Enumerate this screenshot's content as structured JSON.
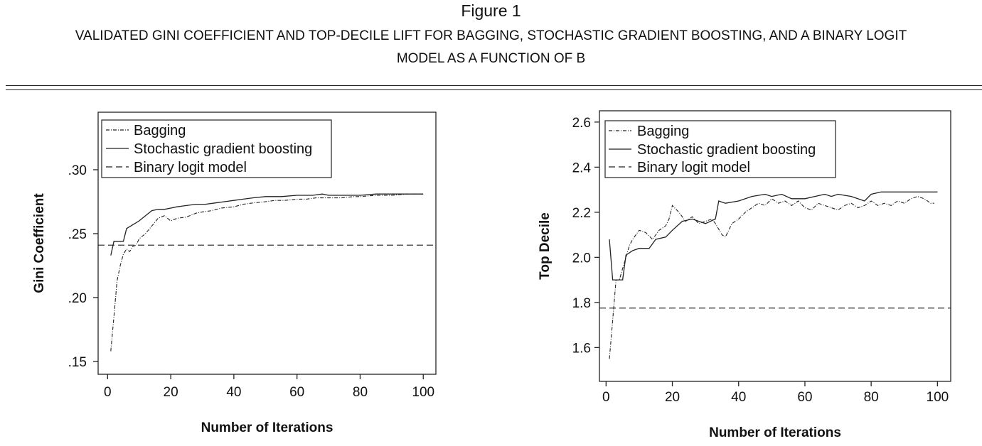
{
  "figure": {
    "title": "Figure 1",
    "caption_line1": "VALIDATED GINI COEFFICIENT AND TOP-DECILE LIFT FOR BAGGING, STOCHASTIC GRADIENT BOOSTING, AND A BINARY LOGIT",
    "caption_line2": "MODEL AS A FUNCTION OF B"
  },
  "chart_data": [
    {
      "type": "line",
      "xlabel": "Number of Iterations",
      "ylabel": "Gini Coefficient",
      "xlim": [
        -3,
        104
      ],
      "ylim": [
        0.14,
        0.345
      ],
      "xticks": [
        0,
        20,
        40,
        60,
        80,
        100
      ],
      "xtick_labels": [
        "0",
        "20",
        "40",
        "60",
        "80",
        "100"
      ],
      "yticks": [
        0.15,
        0.2,
        0.25,
        0.3
      ],
      "ytick_labels": [
        ".15",
        ".20",
        ".25",
        ".30"
      ],
      "legend": "top-left",
      "series": [
        {
          "name": "Bagging",
          "style": "dashdot",
          "points": [
            [
              1,
              0.158
            ],
            [
              2,
              0.185
            ],
            [
              3,
              0.213
            ],
            [
              4,
              0.225
            ],
            [
              5,
              0.234
            ],
            [
              6,
              0.238
            ],
            [
              7,
              0.236
            ],
            [
              8,
              0.24
            ],
            [
              9,
              0.241
            ],
            [
              10,
              0.246
            ],
            [
              12,
              0.25
            ],
            [
              14,
              0.256
            ],
            [
              16,
              0.262
            ],
            [
              18,
              0.264
            ],
            [
              20,
              0.26
            ],
            [
              22,
              0.262
            ],
            [
              25,
              0.263
            ],
            [
              28,
              0.266
            ],
            [
              30,
              0.267
            ],
            [
              33,
              0.268
            ],
            [
              36,
              0.27
            ],
            [
              40,
              0.271
            ],
            [
              43,
              0.273
            ],
            [
              46,
              0.274
            ],
            [
              50,
              0.275
            ],
            [
              53,
              0.276
            ],
            [
              56,
              0.276
            ],
            [
              60,
              0.277
            ],
            [
              63,
              0.277
            ],
            [
              66,
              0.278
            ],
            [
              70,
              0.278
            ],
            [
              74,
              0.278
            ],
            [
              78,
              0.279
            ],
            [
              80,
              0.279
            ],
            [
              85,
              0.28
            ],
            [
              90,
              0.28
            ],
            [
              95,
              0.281
            ],
            [
              100,
              0.281
            ]
          ]
        },
        {
          "name": "Stochastic gradient boosting",
          "style": "solid",
          "points": [
            [
              1,
              0.233
            ],
            [
              2,
              0.244
            ],
            [
              5,
              0.244
            ],
            [
              6,
              0.254
            ],
            [
              8,
              0.257
            ],
            [
              10,
              0.26
            ],
            [
              12,
              0.264
            ],
            [
              14,
              0.268
            ],
            [
              16,
              0.269
            ],
            [
              18,
              0.269
            ],
            [
              20,
              0.27
            ],
            [
              22,
              0.271
            ],
            [
              25,
              0.272
            ],
            [
              28,
              0.273
            ],
            [
              31,
              0.273
            ],
            [
              34,
              0.274
            ],
            [
              37,
              0.275
            ],
            [
              40,
              0.276
            ],
            [
              43,
              0.277
            ],
            [
              46,
              0.278
            ],
            [
              50,
              0.279
            ],
            [
              55,
              0.279
            ],
            [
              60,
              0.28
            ],
            [
              65,
              0.28
            ],
            [
              68,
              0.281
            ],
            [
              70,
              0.28
            ],
            [
              75,
              0.28
            ],
            [
              80,
              0.28
            ],
            [
              85,
              0.281
            ],
            [
              90,
              0.281
            ],
            [
              95,
              0.281
            ],
            [
              100,
              0.281
            ]
          ]
        },
        {
          "name": "Binary logit model",
          "style": "dashed",
          "points": [
            [
              -3,
              0.241
            ],
            [
              104,
              0.241
            ]
          ]
        }
      ]
    },
    {
      "type": "line",
      "xlabel": "Number of Iterations",
      "ylabel": "Top Decile",
      "xlim": [
        -2,
        104
      ],
      "ylim": [
        1.45,
        2.65
      ],
      "xticks": [
        0,
        20,
        40,
        60,
        80,
        100
      ],
      "xtick_labels": [
        "0",
        "20",
        "40",
        "60",
        "80",
        "100"
      ],
      "yticks": [
        1.6,
        1.8,
        2.0,
        2.2,
        2.4,
        2.6
      ],
      "ytick_labels": [
        "1.6",
        "1.8",
        "2.0",
        "2.2",
        "2.4",
        "2.6"
      ],
      "legend": "top-left",
      "series": [
        {
          "name": "Bagging",
          "style": "dashdot",
          "points": [
            [
              1,
              1.55
            ],
            [
              2,
              1.72
            ],
            [
              3,
              1.9
            ],
            [
              4,
              1.9
            ],
            [
              5,
              1.95
            ],
            [
              6,
              2.0
            ],
            [
              7,
              2.05
            ],
            [
              8,
              2.08
            ],
            [
              10,
              2.12
            ],
            [
              12,
              2.11
            ],
            [
              14,
              2.08
            ],
            [
              16,
              2.12
            ],
            [
              18,
              2.14
            ],
            [
              19,
              2.17
            ],
            [
              20,
              2.23
            ],
            [
              22,
              2.2
            ],
            [
              24,
              2.16
            ],
            [
              26,
              2.18
            ],
            [
              28,
              2.15
            ],
            [
              30,
              2.16
            ],
            [
              32,
              2.17
            ],
            [
              33,
              2.15
            ],
            [
              35,
              2.1
            ],
            [
              36,
              2.09
            ],
            [
              38,
              2.15
            ],
            [
              40,
              2.17
            ],
            [
              42,
              2.2
            ],
            [
              44,
              2.22
            ],
            [
              46,
              2.24
            ],
            [
              48,
              2.23
            ],
            [
              50,
              2.26
            ],
            [
              52,
              2.24
            ],
            [
              54,
              2.25
            ],
            [
              56,
              2.23
            ],
            [
              58,
              2.25
            ],
            [
              60,
              2.22
            ],
            [
              62,
              2.21
            ],
            [
              64,
              2.24
            ],
            [
              66,
              2.23
            ],
            [
              68,
              2.22
            ],
            [
              70,
              2.21
            ],
            [
              72,
              2.23
            ],
            [
              74,
              2.24
            ],
            [
              76,
              2.22
            ],
            [
              78,
              2.23
            ],
            [
              80,
              2.25
            ],
            [
              82,
              2.23
            ],
            [
              84,
              2.24
            ],
            [
              86,
              2.23
            ],
            [
              88,
              2.25
            ],
            [
              90,
              2.24
            ],
            [
              92,
              2.26
            ],
            [
              94,
              2.27
            ],
            [
              96,
              2.26
            ],
            [
              98,
              2.24
            ],
            [
              99,
              2.24
            ]
          ]
        },
        {
          "name": "Stochastic gradient boosting",
          "style": "solid",
          "points": [
            [
              1,
              2.08
            ],
            [
              2,
              1.9
            ],
            [
              5,
              1.9
            ],
            [
              6,
              2.01
            ],
            [
              8,
              2.03
            ],
            [
              10,
              2.04
            ],
            [
              13,
              2.04
            ],
            [
              15,
              2.08
            ],
            [
              18,
              2.09
            ],
            [
              20,
              2.12
            ],
            [
              23,
              2.16
            ],
            [
              26,
              2.17
            ],
            [
              30,
              2.15
            ],
            [
              33,
              2.17
            ],
            [
              34,
              2.25
            ],
            [
              36,
              2.24
            ],
            [
              40,
              2.25
            ],
            [
              44,
              2.27
            ],
            [
              48,
              2.28
            ],
            [
              50,
              2.27
            ],
            [
              53,
              2.28
            ],
            [
              56,
              2.26
            ],
            [
              60,
              2.26
            ],
            [
              63,
              2.27
            ],
            [
              66,
              2.28
            ],
            [
              68,
              2.27
            ],
            [
              70,
              2.28
            ],
            [
              74,
              2.27
            ],
            [
              78,
              2.25
            ],
            [
              80,
              2.28
            ],
            [
              83,
              2.29
            ],
            [
              86,
              2.29
            ],
            [
              90,
              2.29
            ],
            [
              95,
              2.29
            ],
            [
              100,
              2.29
            ]
          ]
        },
        {
          "name": "Binary logit model",
          "style": "dashed",
          "points": [
            [
              -2,
              1.775
            ],
            [
              104,
              1.775
            ]
          ]
        }
      ]
    }
  ]
}
